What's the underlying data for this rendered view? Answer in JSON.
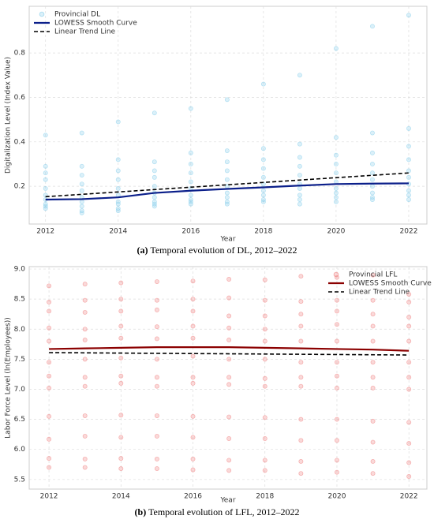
{
  "chart_data": [
    {
      "type": "scatter",
      "y_label": "Digitalization Level (Index Value)",
      "x_label": "Year",
      "caption_label": "(a)",
      "caption": "Temporal evolution of DL, 2012–2022",
      "xlim": [
        2011.55,
        2022.5
      ],
      "xticks": [
        2012,
        2014,
        2016,
        2018,
        2020,
        2022
      ],
      "ylim": [
        0.03,
        1.01
      ],
      "yticks": [
        0.2,
        0.4,
        0.6,
        0.8
      ],
      "grid": true,
      "legend": "upper left",
      "series": [
        {
          "name": "Provincial DL",
          "color": "#87ceeb",
          "mark": "point",
          "x": [
            2012,
            2012,
            2012,
            2012,
            2012,
            2012,
            2012,
            2012,
            2012,
            2012,
            2013,
            2013,
            2013,
            2013,
            2013,
            2013,
            2013,
            2013,
            2013,
            2013,
            2014,
            2014,
            2014,
            2014,
            2014,
            2014,
            2014,
            2014,
            2014,
            2014,
            2015,
            2015,
            2015,
            2015,
            2015,
            2015,
            2015,
            2015,
            2015,
            2015,
            2016,
            2016,
            2016,
            2016,
            2016,
            2016,
            2016,
            2016,
            2016,
            2016,
            2017,
            2017,
            2017,
            2017,
            2017,
            2017,
            2017,
            2017,
            2017,
            2017,
            2018,
            2018,
            2018,
            2018,
            2018,
            2018,
            2018,
            2018,
            2018,
            2018,
            2019,
            2019,
            2019,
            2019,
            2019,
            2019,
            2019,
            2019,
            2019,
            2019,
            2020,
            2020,
            2020,
            2020,
            2020,
            2020,
            2020,
            2020,
            2020,
            2020,
            2021,
            2021,
            2021,
            2021,
            2021,
            2021,
            2021,
            2021,
            2021,
            2021,
            2022,
            2022,
            2022,
            2022,
            2022,
            2022,
            2022,
            2022,
            2022,
            2022
          ],
          "values": [
            0.43,
            0.29,
            0.26,
            0.23,
            0.19,
            0.16,
            0.14,
            0.12,
            0.11,
            0.1,
            0.44,
            0.29,
            0.25,
            0.21,
            0.18,
            0.15,
            0.13,
            0.11,
            0.09,
            0.08,
            0.49,
            0.32,
            0.27,
            0.23,
            0.19,
            0.16,
            0.13,
            0.12,
            0.1,
            0.09,
            0.53,
            0.31,
            0.27,
            0.24,
            0.2,
            0.17,
            0.15,
            0.13,
            0.12,
            0.11,
            0.55,
            0.35,
            0.3,
            0.26,
            0.22,
            0.19,
            0.16,
            0.14,
            0.13,
            0.12,
            0.59,
            0.36,
            0.31,
            0.27,
            0.23,
            0.2,
            0.17,
            0.15,
            0.13,
            0.12,
            0.66,
            0.37,
            0.32,
            0.28,
            0.24,
            0.21,
            0.18,
            0.16,
            0.14,
            0.13,
            0.7,
            0.39,
            0.33,
            0.29,
            0.25,
            0.21,
            0.19,
            0.16,
            0.14,
            0.12,
            0.82,
            0.42,
            0.34,
            0.3,
            0.26,
            0.22,
            0.19,
            0.17,
            0.15,
            0.13,
            0.92,
            0.44,
            0.35,
            0.3,
            0.26,
            0.23,
            0.2,
            0.17,
            0.15,
            0.14,
            0.97,
            0.46,
            0.38,
            0.32,
            0.27,
            0.24,
            0.21,
            0.18,
            0.16,
            0.14
          ]
        },
        {
          "name": "LOWESS Smooth Curve",
          "color": "#0b1f8a",
          "mark": "line",
          "dash": false,
          "x": [
            2012,
            2013,
            2014,
            2015,
            2016,
            2017,
            2018,
            2019,
            2020,
            2021,
            2022
          ],
          "values": [
            0.14,
            0.142,
            0.15,
            0.17,
            0.18,
            0.188,
            0.195,
            0.203,
            0.21,
            0.212,
            0.213
          ]
        },
        {
          "name": "Linear Trend Line",
          "color": "#000000",
          "mark": "line",
          "dash": true,
          "x": [
            2012,
            2022
          ],
          "values": [
            0.153,
            0.26
          ]
        }
      ]
    },
    {
      "type": "scatter",
      "y_label": "Labor Force Level (ln(Employees))",
      "x_label": "Year",
      "caption_label": "(b)",
      "caption": "Temporal evolution of LFL, 2012–2022",
      "xlim": [
        2011.45,
        2022.5
      ],
      "xticks": [
        2012,
        2014,
        2016,
        2018,
        2020,
        2022
      ],
      "ylim": [
        5.34,
        9.04
      ],
      "yticks": [
        5.5,
        {
          "value": 6,
          "label": "6.0"
        },
        6.5,
        {
          "value": 7,
          "label": "7.0"
        },
        7.5,
        {
          "value": 8,
          "label": "8.0"
        },
        8.5,
        {
          "value": 9,
          "label": "9.0"
        }
      ],
      "grid": true,
      "legend": "upper right",
      "series": [
        {
          "name": "Provincial LFL",
          "color": "#f08080",
          "mark": "point",
          "x": [
            2012,
            2012,
            2012,
            2012,
            2012,
            2012,
            2012,
            2012,
            2012,
            2012,
            2012,
            2012,
            2013,
            2013,
            2013,
            2013,
            2013,
            2013,
            2013,
            2013,
            2013,
            2013,
            2013,
            2013,
            2014,
            2014,
            2014,
            2014,
            2014,
            2014,
            2014,
            2014,
            2014,
            2014,
            2014,
            2014,
            2015,
            2015,
            2015,
            2015,
            2015,
            2015,
            2015,
            2015,
            2015,
            2015,
            2015,
            2015,
            2016,
            2016,
            2016,
            2016,
            2016,
            2016,
            2016,
            2016,
            2016,
            2016,
            2016,
            2016,
            2017,
            2017,
            2017,
            2017,
            2017,
            2017,
            2017,
            2017,
            2017,
            2017,
            2017,
            2017,
            2018,
            2018,
            2018,
            2018,
            2018,
            2018,
            2018,
            2018,
            2018,
            2018,
            2018,
            2018,
            2019,
            2019,
            2019,
            2019,
            2019,
            2019,
            2019,
            2019,
            2019,
            2019,
            2019,
            2019,
            2020,
            2020,
            2020,
            2020,
            2020,
            2020,
            2020,
            2020,
            2020,
            2020,
            2020,
            2020,
            2021,
            2021,
            2021,
            2021,
            2021,
            2021,
            2021,
            2021,
            2021,
            2021,
            2021,
            2021,
            2022,
            2022,
            2022,
            2022,
            2022,
            2022,
            2022,
            2022,
            2022,
            2022,
            2022,
            2022
          ],
          "values": [
            8.72,
            8.45,
            8.3,
            8.02,
            7.8,
            7.45,
            7.22,
            7.02,
            6.55,
            6.17,
            5.85,
            5.7,
            8.75,
            8.48,
            8.28,
            8.0,
            7.82,
            7.5,
            7.2,
            7.05,
            6.56,
            6.22,
            5.84,
            5.7,
            8.77,
            8.5,
            8.3,
            8.05,
            7.85,
            7.52,
            7.22,
            7.1,
            6.57,
            6.2,
            5.85,
            5.68,
            8.79,
            8.48,
            8.32,
            8.04,
            7.84,
            7.5,
            7.2,
            7.05,
            6.56,
            6.22,
            5.84,
            5.68,
            8.8,
            8.5,
            8.3,
            8.05,
            7.85,
            7.55,
            7.2,
            7.1,
            6.55,
            6.2,
            5.84,
            5.66,
            8.83,
            8.52,
            8.22,
            8.02,
            7.82,
            7.5,
            7.2,
            7.08,
            6.54,
            6.18,
            5.82,
            5.65,
            8.82,
            8.48,
            8.22,
            8.0,
            7.8,
            7.5,
            7.18,
            7.05,
            6.53,
            6.18,
            5.82,
            5.65,
            8.88,
            8.46,
            8.25,
            8.05,
            7.8,
            7.45,
            7.2,
            7.05,
            6.5,
            6.15,
            5.8,
            5.6,
            8.86,
            8.48,
            8.3,
            8.08,
            7.8,
            7.45,
            7.22,
            7.02,
            6.5,
            6.15,
            5.82,
            5.62,
            8.9,
            8.48,
            8.25,
            8.05,
            7.8,
            7.45,
            7.2,
            7.02,
            6.47,
            6.12,
            5.8,
            5.6,
            8.58,
            8.45,
            8.2,
            8.05,
            7.8,
            7.45,
            7.2,
            7.0,
            6.45,
            6.1,
            5.78,
            5.55
          ]
        },
        {
          "name": "LOWESS Smooth Curve",
          "color": "#8b0000",
          "mark": "line",
          "dash": false,
          "x": [
            2012,
            2013,
            2014,
            2015,
            2016,
            2017,
            2018,
            2019,
            2020,
            2021,
            2022
          ],
          "values": [
            7.67,
            7.68,
            7.69,
            7.7,
            7.7,
            7.7,
            7.69,
            7.68,
            7.67,
            7.66,
            7.64
          ]
        },
        {
          "name": "Linear Trend Line",
          "color": "#000000",
          "mark": "line",
          "dash": true,
          "x": [
            2012,
            2022
          ],
          "values": [
            7.61,
            7.57
          ]
        }
      ]
    }
  ]
}
